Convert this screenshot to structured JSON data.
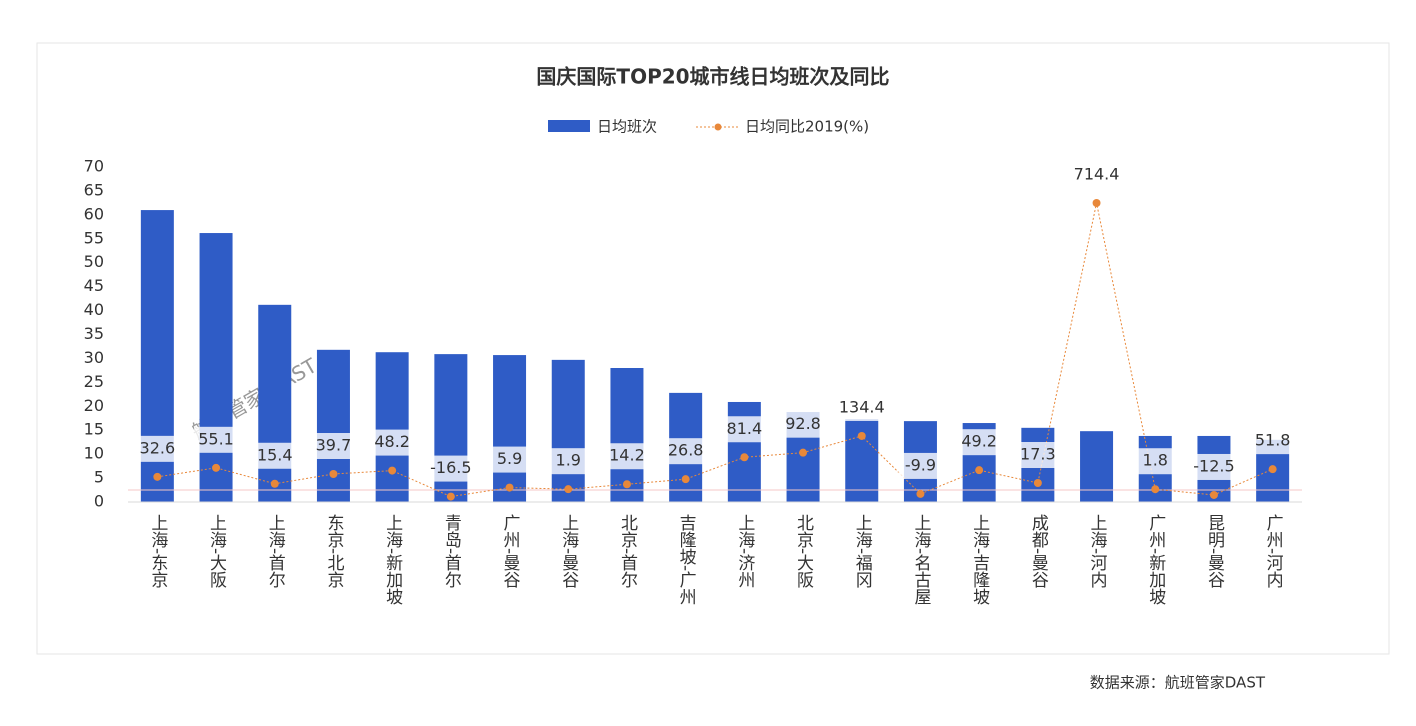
{
  "chart_data": {
    "type": "bar_line",
    "title": "国庆国际TOP20城市线日均班次及同比",
    "categories": [
      "上海-东京",
      "上海-大阪",
      "上海-首尔",
      "东京-北京",
      "上海-新加坡",
      "青岛-首尔",
      "广州-曼谷",
      "上海-曼谷",
      "北京-首尔",
      "吉隆坡-广州",
      "上海-济州",
      "北京-大阪",
      "上海-福冈",
      "上海-名古屋",
      "上海-吉隆坡",
      "成都-曼谷",
      "上海-河内",
      "广州-新加坡",
      "昆明-曼谷",
      "广州-河内"
    ],
    "series": [
      {
        "name": "日均班次",
        "color": "#2f5cc6",
        "type": "bar",
        "values": [
          61.0,
          56.2,
          41.2,
          31.8,
          31.3,
          30.9,
          30.7,
          29.7,
          28.0,
          22.8,
          20.9,
          18.8,
          17.3,
          16.9,
          16.5,
          15.5,
          14.8,
          13.8,
          13.8,
          13.0
        ]
      },
      {
        "name": "日均同比2019(%)",
        "color": "#e8883a",
        "type": "line",
        "axis": "y2",
        "values": [
          32.6,
          55.1,
          15.4,
          39.7,
          48.2,
          -16.5,
          5.9,
          1.9,
          14.2,
          26.8,
          81.4,
          92.8,
          134.4,
          -9.9,
          49.2,
          17.3,
          714.4,
          1.8,
          -12.5,
          51.8
        ]
      }
    ],
    "ylim": [
      0,
      70
    ],
    "yticks": [
      0,
      5,
      10,
      15,
      20,
      25,
      30,
      35,
      40,
      45,
      50,
      55,
      60,
      65,
      70
    ],
    "y2lim": [
      -30,
      804
    ],
    "legend": "top",
    "watermark": "航班管家 DAST",
    "source": "数据来源：航班管家DAST"
  }
}
